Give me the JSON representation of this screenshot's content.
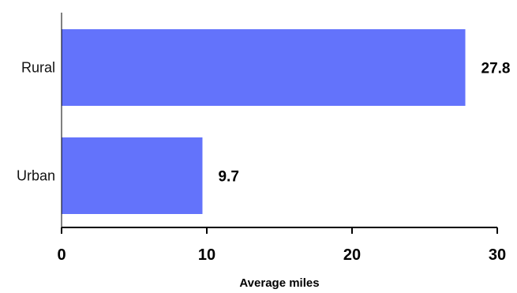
{
  "chart_data": {
    "type": "bar",
    "orientation": "horizontal",
    "categories": [
      "Rural",
      "Urban"
    ],
    "values": [
      27.8,
      9.7
    ],
    "value_labels": [
      "27.8",
      "9.7"
    ],
    "title": "",
    "xlabel": "Average miles",
    "ylabel": "",
    "xlim": [
      0,
      30
    ],
    "x_ticks": [
      0,
      10,
      20,
      30
    ],
    "x_tick_labels": [
      "0",
      "10",
      "20",
      "30"
    ],
    "grid": false,
    "bar_color": "#6373fb",
    "axis_color": "#000000"
  }
}
